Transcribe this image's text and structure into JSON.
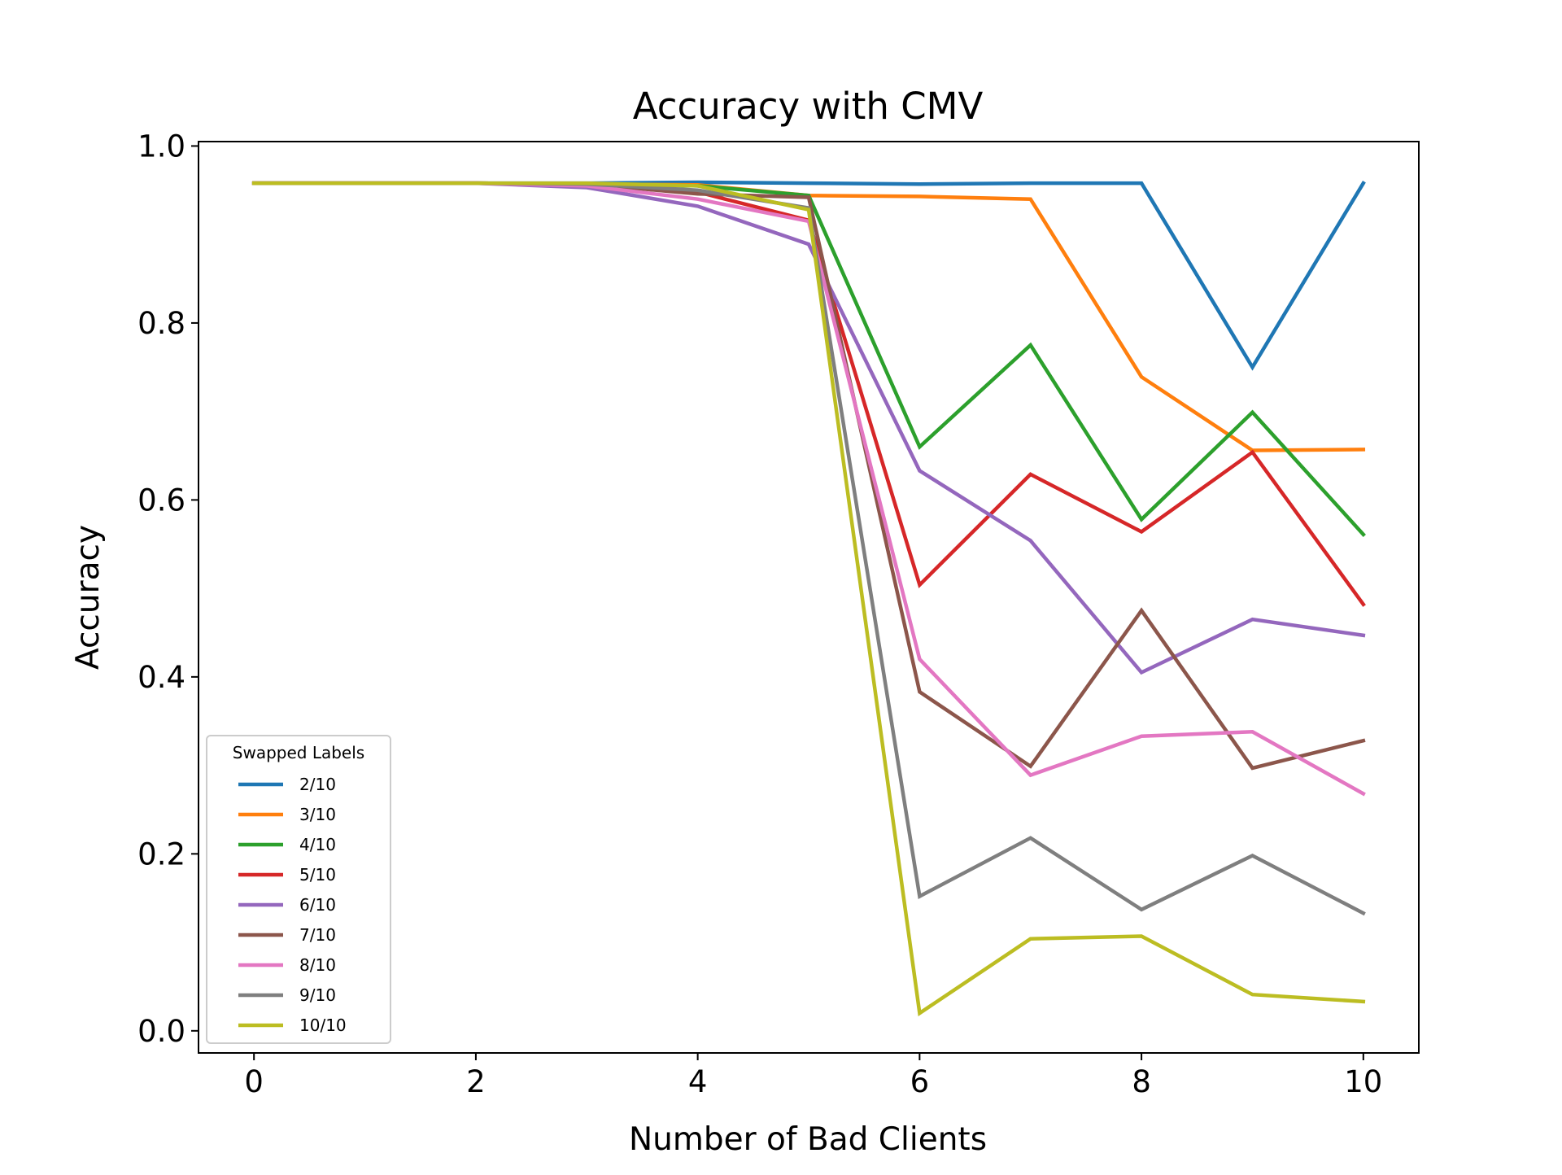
{
  "chart_data": {
    "type": "line",
    "title": "Accuracy with CMV",
    "xlabel": "Number of Bad Clients",
    "ylabel": "Accuracy",
    "xlim": [
      -0.5,
      10.5
    ],
    "ylim": [
      -0.025,
      1.005
    ],
    "xticks": [
      0,
      2,
      4,
      6,
      8,
      10
    ],
    "xtick_labels": [
      "0",
      "2",
      "4",
      "6",
      "8",
      "10"
    ],
    "yticks": [
      0.0,
      0.2,
      0.4,
      0.6,
      0.8,
      1.0
    ],
    "ytick_labels": [
      "0.0",
      "0.2",
      "0.4",
      "0.6",
      "0.8",
      "1.0"
    ],
    "grid": false,
    "legend": {
      "title": "Swapped Labels",
      "placement": "lower-left"
    },
    "x": [
      0,
      1,
      2,
      3,
      4,
      5,
      6,
      7,
      8,
      9,
      10
    ],
    "series": [
      {
        "name": "2/10",
        "color": "#1f77b4",
        "values": [
          0.958,
          0.958,
          0.958,
          0.958,
          0.959,
          0.958,
          0.957,
          0.958,
          0.958,
          0.75,
          0.958
        ]
      },
      {
        "name": "3/10",
        "color": "#ff7f0e",
        "values": [
          0.958,
          0.958,
          0.958,
          0.957,
          0.956,
          0.944,
          0.943,
          0.94,
          0.739,
          0.656,
          0.657
        ]
      },
      {
        "name": "4/10",
        "color": "#2ca02c",
        "values": [
          0.958,
          0.958,
          0.958,
          0.957,
          0.955,
          0.944,
          0.66,
          0.775,
          0.578,
          0.699,
          0.561
        ]
      },
      {
        "name": "5/10",
        "color": "#d62728",
        "values": [
          0.958,
          0.958,
          0.958,
          0.957,
          0.948,
          0.916,
          0.504,
          0.629,
          0.564,
          0.654,
          0.482
        ]
      },
      {
        "name": "6/10",
        "color": "#9467bd",
        "values": [
          0.958,
          0.958,
          0.958,
          0.953,
          0.932,
          0.889,
          0.633,
          0.554,
          0.405,
          0.465,
          0.447
        ]
      },
      {
        "name": "7/10",
        "color": "#8c564b",
        "values": [
          0.958,
          0.958,
          0.958,
          0.957,
          0.946,
          0.942,
          0.383,
          0.299,
          0.475,
          0.297,
          0.328
        ]
      },
      {
        "name": "8/10",
        "color": "#e377c2",
        "values": [
          0.958,
          0.958,
          0.958,
          0.955,
          0.94,
          0.915,
          0.42,
          0.289,
          0.333,
          0.338,
          0.268
        ]
      },
      {
        "name": "9/10",
        "color": "#7f7f7f",
        "values": [
          0.958,
          0.958,
          0.958,
          0.957,
          0.95,
          0.93,
          0.152,
          0.218,
          0.137,
          0.198,
          0.133
        ]
      },
      {
        "name": "10/10",
        "color": "#bcbd22",
        "values": [
          0.958,
          0.958,
          0.958,
          0.958,
          0.955,
          0.928,
          0.02,
          0.104,
          0.107,
          0.041,
          0.033
        ]
      }
    ]
  }
}
